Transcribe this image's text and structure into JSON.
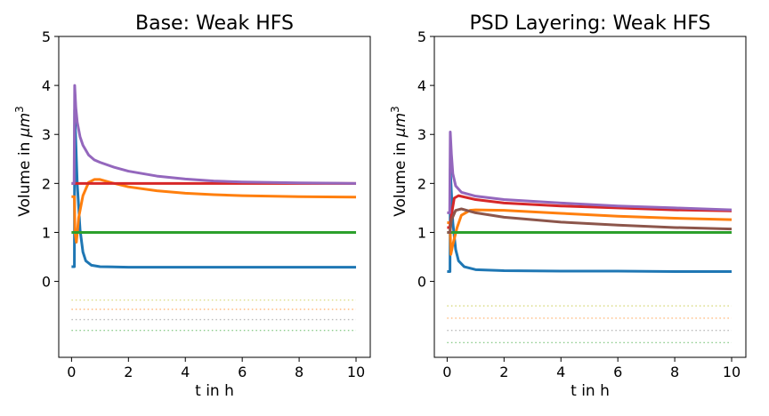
{
  "chart_data": [
    {
      "type": "line",
      "title": "Base: Weak HFS",
      "xlabel": "t in h",
      "ylabel_text": "Volume in ",
      "ylabel_unit": "μm",
      "ylabel_exp": "3",
      "xlim": [
        -0.45,
        10.5
      ],
      "ylim": [
        -1.55,
        5
      ],
      "xticks": [
        0,
        2,
        4,
        6,
        8,
        10
      ],
      "yticks": [
        0,
        1,
        2,
        3,
        4,
        5
      ],
      "grid": false,
      "series": [
        {
          "color": "#1f77b4",
          "style": "solid",
          "points": [
            [
              0,
              0.3
            ],
            [
              0.1,
              0.3
            ],
            [
              0.11,
              3.5
            ],
            [
              0.2,
              2.0
            ],
            [
              0.3,
              1.05
            ],
            [
              0.4,
              0.6
            ],
            [
              0.5,
              0.42
            ],
            [
              0.7,
              0.33
            ],
            [
              1,
              0.3
            ],
            [
              2,
              0.29
            ],
            [
              4,
              0.29
            ],
            [
              6,
              0.29
            ],
            [
              8,
              0.29
            ],
            [
              10,
              0.29
            ]
          ]
        },
        {
          "color": "#ff7f0e",
          "style": "solid",
          "points": [
            [
              0,
              1.73
            ],
            [
              0.1,
              1.73
            ],
            [
              0.12,
              1.0
            ],
            [
              0.17,
              0.8
            ],
            [
              0.25,
              1.3
            ],
            [
              0.4,
              1.75
            ],
            [
              0.6,
              2.02
            ],
            [
              0.8,
              2.08
            ],
            [
              1,
              2.08
            ],
            [
              1.5,
              2.0
            ],
            [
              2,
              1.93
            ],
            [
              3,
              1.85
            ],
            [
              4,
              1.8
            ],
            [
              5,
              1.77
            ],
            [
              6,
              1.75
            ],
            [
              8,
              1.73
            ],
            [
              10,
              1.72
            ]
          ]
        },
        {
          "color": "#2ca02c",
          "style": "solid",
          "points": [
            [
              0,
              1
            ],
            [
              10,
              1
            ]
          ]
        },
        {
          "color": "#d62728",
          "style": "solid",
          "points": [
            [
              0,
              2.0
            ],
            [
              10,
              2.0
            ]
          ]
        },
        {
          "color": "#9467bd",
          "style": "solid",
          "points": [
            [
              0,
              2.0
            ],
            [
              0.09,
              2.0
            ],
            [
              0.11,
              4.0
            ],
            [
              0.15,
              3.55
            ],
            [
              0.2,
              3.25
            ],
            [
              0.3,
              2.95
            ],
            [
              0.4,
              2.78
            ],
            [
              0.6,
              2.58
            ],
            [
              0.8,
              2.48
            ],
            [
              1,
              2.43
            ],
            [
              1.5,
              2.33
            ],
            [
              2,
              2.25
            ],
            [
              3,
              2.15
            ],
            [
              4,
              2.09
            ],
            [
              5,
              2.05
            ],
            [
              6,
              2.03
            ],
            [
              8,
              2.01
            ],
            [
              10,
              2.0
            ]
          ]
        },
        {
          "color": "#bcbd22",
          "style": "dotted",
          "points": [
            [
              0,
              -0.38
            ],
            [
              10,
              -0.38
            ]
          ]
        },
        {
          "color": "#ff7f0e",
          "style": "dotted",
          "points": [
            [
              0,
              -0.57
            ],
            [
              10,
              -0.57
            ]
          ]
        },
        {
          "color": "#7f7f7f",
          "style": "dotted",
          "points": [
            [
              0,
              -0.78
            ],
            [
              10,
              -0.78
            ]
          ]
        },
        {
          "color": "#2ca02c",
          "style": "dotted",
          "points": [
            [
              0,
              -1.0
            ],
            [
              10,
              -1.0
            ]
          ]
        }
      ]
    },
    {
      "type": "line",
      "title": "PSD Layering: Weak HFS",
      "xlabel": "t in h",
      "ylabel_text": "Volume in ",
      "ylabel_unit": "μm",
      "ylabel_exp": "3",
      "xlim": [
        -0.45,
        10.5
      ],
      "ylim": [
        -1.55,
        5
      ],
      "xticks": [
        0,
        2,
        4,
        6,
        8,
        10
      ],
      "yticks": [
        0,
        1,
        2,
        3,
        4,
        5
      ],
      "grid": false,
      "series": [
        {
          "color": "#1f77b4",
          "style": "solid",
          "points": [
            [
              0,
              0.2
            ],
            [
              0.1,
              0.2
            ],
            [
              0.11,
              2.3
            ],
            [
              0.2,
              1.2
            ],
            [
              0.3,
              0.65
            ],
            [
              0.4,
              0.42
            ],
            [
              0.6,
              0.3
            ],
            [
              1,
              0.24
            ],
            [
              2,
              0.22
            ],
            [
              4,
              0.21
            ],
            [
              6,
              0.21
            ],
            [
              8,
              0.2
            ],
            [
              10,
              0.2
            ]
          ]
        },
        {
          "color": "#ff7f0e",
          "style": "solid",
          "points": [
            [
              0,
              1.2
            ],
            [
              0.1,
              1.2
            ],
            [
              0.13,
              0.55
            ],
            [
              0.2,
              0.75
            ],
            [
              0.35,
              1.1
            ],
            [
              0.5,
              1.35
            ],
            [
              0.8,
              1.45
            ],
            [
              1,
              1.46
            ],
            [
              2,
              1.45
            ],
            [
              4,
              1.39
            ],
            [
              6,
              1.33
            ],
            [
              8,
              1.29
            ],
            [
              10,
              1.26
            ]
          ]
        },
        {
          "color": "#2ca02c",
          "style": "solid",
          "points": [
            [
              0,
              1
            ],
            [
              10,
              1
            ]
          ]
        },
        {
          "color": "#d62728",
          "style": "solid",
          "points": [
            [
              0,
              1.1
            ],
            [
              0.1,
              1.1
            ],
            [
              0.15,
              1.35
            ],
            [
              0.25,
              1.7
            ],
            [
              0.4,
              1.75
            ],
            [
              1,
              1.67
            ],
            [
              2,
              1.6
            ],
            [
              4,
              1.54
            ],
            [
              6,
              1.5
            ],
            [
              8,
              1.46
            ],
            [
              10,
              1.44
            ]
          ]
        },
        {
          "color": "#9467bd",
          "style": "solid",
          "points": [
            [
              0,
              1.4
            ],
            [
              0.09,
              1.4
            ],
            [
              0.11,
              3.05
            ],
            [
              0.15,
              2.6
            ],
            [
              0.2,
              2.2
            ],
            [
              0.3,
              1.95
            ],
            [
              0.5,
              1.82
            ],
            [
              1,
              1.74
            ],
            [
              2,
              1.67
            ],
            [
              4,
              1.6
            ],
            [
              6,
              1.54
            ],
            [
              8,
              1.5
            ],
            [
              10,
              1.46
            ]
          ]
        },
        {
          "color": "#8c564b",
          "style": "solid",
          "points": [
            [
              0,
              1.0
            ],
            [
              0.1,
              1.0
            ],
            [
              0.15,
              1.25
            ],
            [
              0.3,
              1.45
            ],
            [
              0.5,
              1.48
            ],
            [
              1,
              1.4
            ],
            [
              2,
              1.31
            ],
            [
              4,
              1.21
            ],
            [
              6,
              1.15
            ],
            [
              8,
              1.1
            ],
            [
              10,
              1.07
            ]
          ]
        },
        {
          "color": "#bcbd22",
          "style": "dotted",
          "points": [
            [
              0,
              -0.5
            ],
            [
              10,
              -0.5
            ]
          ]
        },
        {
          "color": "#ff7f0e",
          "style": "dotted",
          "points": [
            [
              0,
              -0.75
            ],
            [
              10,
              -0.75
            ]
          ]
        },
        {
          "color": "#7f7f7f",
          "style": "dotted",
          "points": [
            [
              0,
              -1.0
            ],
            [
              10,
              -1.0
            ]
          ]
        },
        {
          "color": "#2ca02c",
          "style": "dotted",
          "points": [
            [
              0,
              -1.25
            ],
            [
              10,
              -1.25
            ]
          ]
        }
      ]
    }
  ]
}
